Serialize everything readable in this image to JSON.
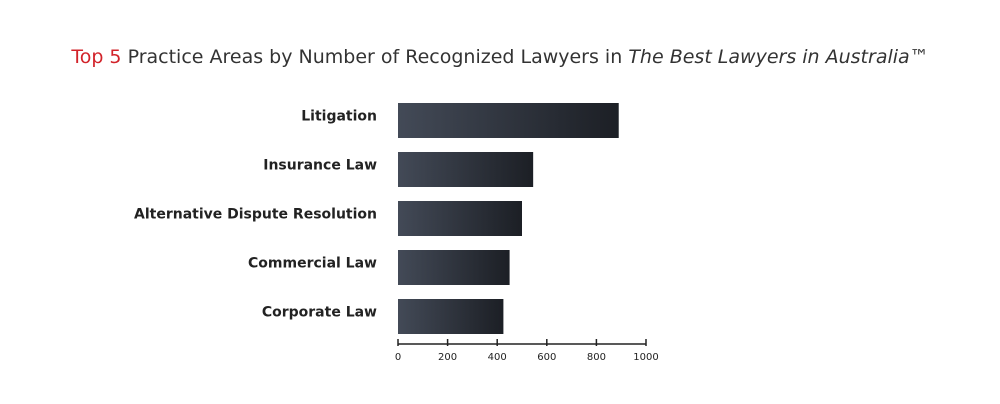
{
  "chart_data": {
    "type": "bar",
    "orientation": "horizontal",
    "title_parts": [
      "Top 5",
      "Practice Areas by Number of Recognized Lawyers in",
      "The Best Lawyers in Australia™"
    ],
    "categories": [
      "Litigation",
      "Insurance Law",
      "Alternative Dispute Resolution",
      "Commercial Law",
      "Corporate Law"
    ],
    "values": [
      890,
      545,
      500,
      450,
      425
    ],
    "gradient": [
      "#434a57",
      "#1c1f25"
    ],
    "title_accent_color": "#d2232a",
    "xlim": [
      0,
      1000
    ],
    "xticks": [
      0,
      200,
      400,
      600,
      800,
      1000
    ],
    "grid": false
  }
}
